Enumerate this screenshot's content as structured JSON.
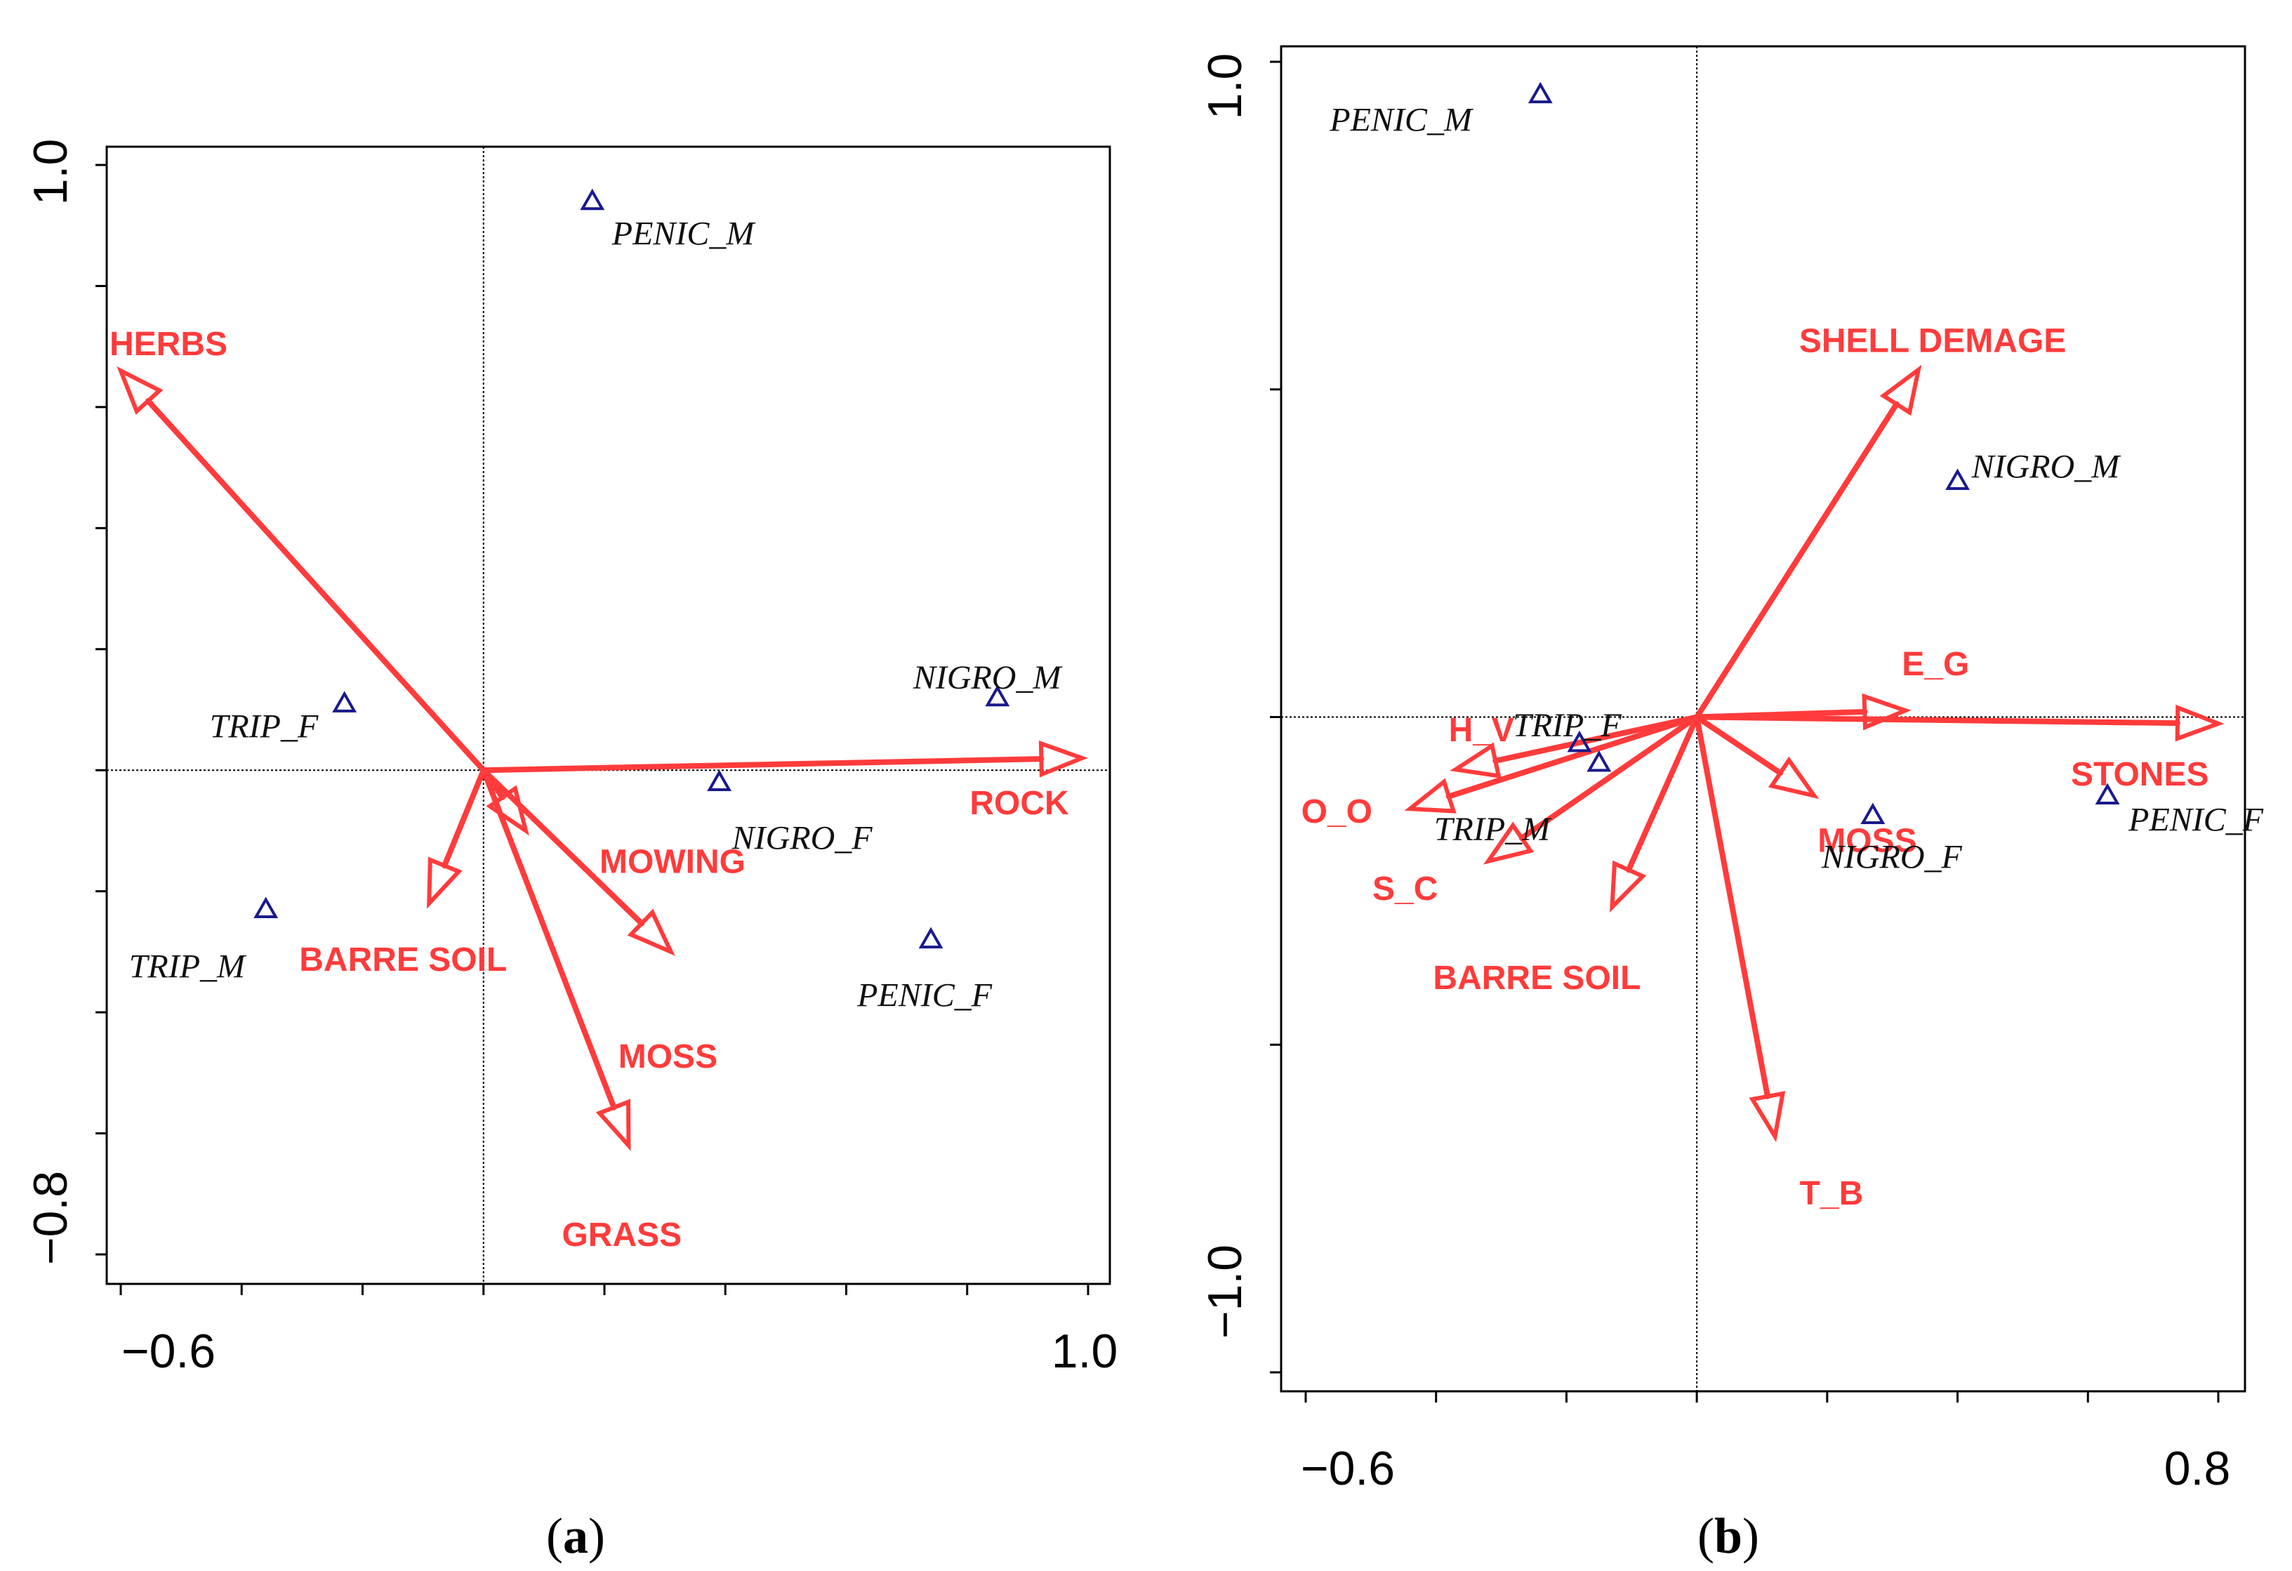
{
  "colors": {
    "vector": "#ff3b3b",
    "species": "#1a1a8c",
    "axis": "#000000"
  },
  "chart_data": [
    {
      "type": "scatter",
      "subtype": "biplot",
      "caption": {
        "open": "(",
        "letter": "a",
        "close": ")"
      },
      "xlim": [
        -0.6,
        1.0
      ],
      "ylim": [
        -0.8,
        1.0
      ],
      "x_tick_labels": [
        "−0.6",
        "1.0"
      ],
      "y_tick_labels": [
        "1.0",
        "−0.8"
      ],
      "x_minor_ticks": [
        -0.6,
        -0.4,
        -0.2,
        0,
        0.2,
        0.4,
        0.6,
        0.8,
        1.0
      ],
      "y_minor_ticks": [
        -0.8,
        -0.6,
        -0.4,
        -0.2,
        0,
        0.2,
        0.4,
        0.6,
        0.8,
        1.0
      ],
      "vectors": [
        {
          "name": "HERBS",
          "x": -0.6,
          "y": 0.66
        },
        {
          "name": "ROCK",
          "x": 0.99,
          "y": 0.02
        },
        {
          "name": "BARRE SOIL",
          "x": -0.09,
          "y": -0.22
        },
        {
          "name": "MOWING",
          "x": 0.07,
          "y": -0.1
        },
        {
          "name": "MOSS",
          "x": 0.31,
          "y": -0.3
        },
        {
          "name": "GRASS",
          "x": 0.24,
          "y": -0.62
        }
      ],
      "species": [
        {
          "name": "PENIC_M",
          "x": 0.18,
          "y": 0.94
        },
        {
          "name": "TRIP_F",
          "x": -0.23,
          "y": 0.11
        },
        {
          "name": "NIGRO_M",
          "x": 0.85,
          "y": 0.12
        },
        {
          "name": "NIGRO_F",
          "x": 0.39,
          "y": -0.02
        },
        {
          "name": "TRIP_M",
          "x": -0.36,
          "y": -0.23
        },
        {
          "name": "PENIC_F",
          "x": 0.74,
          "y": -0.28
        }
      ]
    },
    {
      "type": "scatter",
      "subtype": "biplot",
      "caption": {
        "open": "(",
        "letter": "b",
        "close": ")"
      },
      "xlim": [
        -0.6,
        0.8
      ],
      "ylim": [
        -1.0,
        1.0
      ],
      "x_tick_labels": [
        "−0.6",
        "0.8"
      ],
      "y_tick_labels": [
        "1.0",
        "−1.0"
      ],
      "x_minor_ticks": [
        -0.6,
        -0.4,
        -0.2,
        0,
        0.2,
        0.4,
        0.6,
        0.8
      ],
      "y_minor_ticks": [
        -1.0,
        -0.5,
        0,
        0.5,
        1.0
      ],
      "vectors": [
        {
          "name": "SHELL DEMAGE",
          "x": 0.34,
          "y": 0.53
        },
        {
          "name": "E_G",
          "x": 0.32,
          "y": 0.01
        },
        {
          "name": "STONES",
          "x": 0.8,
          "y": -0.01
        },
        {
          "name": "H_V",
          "x": -0.37,
          "y": -0.08
        },
        {
          "name": "O_O",
          "x": -0.44,
          "y": -0.14
        },
        {
          "name": "S_C",
          "x": -0.32,
          "y": -0.22
        },
        {
          "name": "BARRE SOIL",
          "x": -0.13,
          "y": -0.29
        },
        {
          "name": "MOSS",
          "x": 0.18,
          "y": -0.12
        },
        {
          "name": "T_B",
          "x": 0.12,
          "y": -0.64
        }
      ],
      "species": [
        {
          "name": "PENIC_M",
          "x": -0.24,
          "y": 0.95
        },
        {
          "name": "NIGRO_M",
          "x": 0.4,
          "y": 0.36
        },
        {
          "name": "TRIP_F",
          "x": -0.18,
          "y": -0.04
        },
        {
          "name": "TRIP_M",
          "x": -0.15,
          "y": -0.07
        },
        {
          "name": "NIGRO_F",
          "x": 0.27,
          "y": -0.15
        },
        {
          "name": "PENIC_F",
          "x": 0.63,
          "y": -0.12
        }
      ]
    }
  ]
}
